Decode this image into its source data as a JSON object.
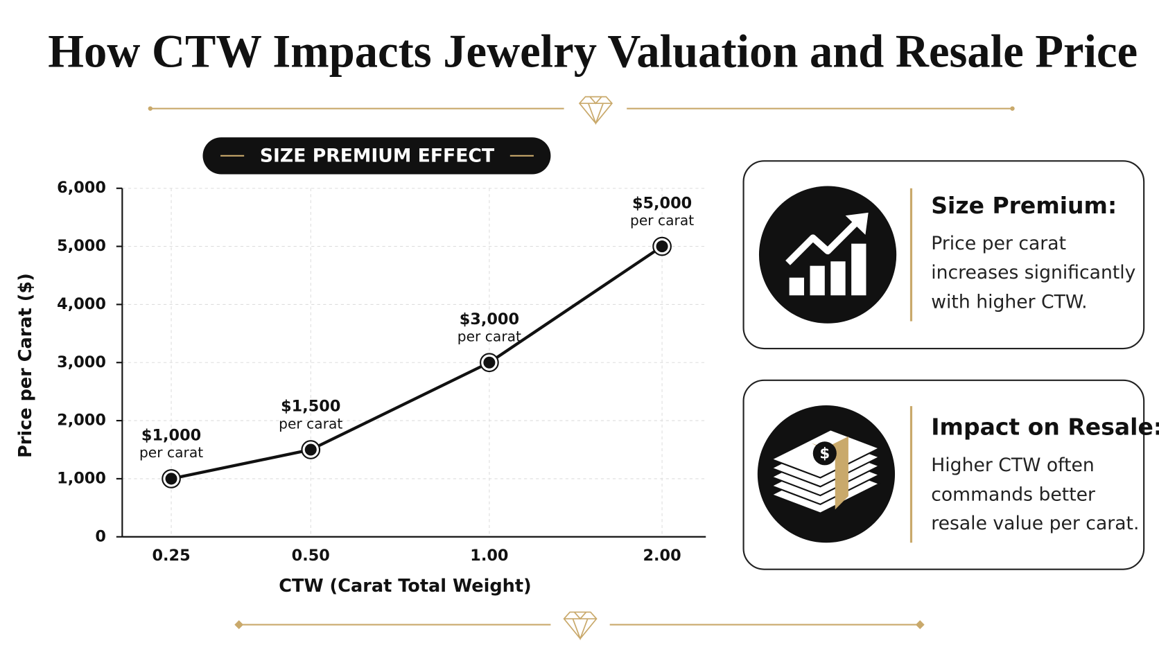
{
  "chart_data": {
    "type": "line",
    "title": "How CTW Impacts Jewelry Valuation and Resale Price",
    "subtitle": "SIZE PREMIUM EFFECT",
    "x_label": "CTW (Carat Total Weight)",
    "y_label": "Price per Carat ($)",
    "categories": [
      "0.25",
      "0.50",
      "1.00",
      "2.00"
    ],
    "values": [
      1000,
      1500,
      3000,
      5000
    ],
    "value_labels": [
      "$1,000",
      "$1,500",
      "$3,000",
      "$5,000"
    ],
    "value_sublabel": "per carat",
    "color": "#111111",
    "ylim": [
      0,
      6000
    ],
    "yticks": [
      0,
      {
        "value": 1000,
        "label": "1,000"
      },
      {
        "value": 2000,
        "label": "2,000"
      },
      {
        "value": 3000,
        "label": "3,000"
      },
      {
        "value": 4000,
        "label": "4,000"
      },
      {
        "value": 5000,
        "label": "5,000"
      },
      {
        "value": 6000,
        "label": "6,000"
      }
    ],
    "grid": true
  },
  "cards": [
    {
      "title": "Size Premium:",
      "lines": [
        "Price per carat",
        "increases significantly",
        "with higher CTW."
      ]
    },
    {
      "title": "Impact on Resale:",
      "lines": [
        "Higher CTW often",
        "commands better",
        "resale value per carat."
      ]
    }
  ]
}
